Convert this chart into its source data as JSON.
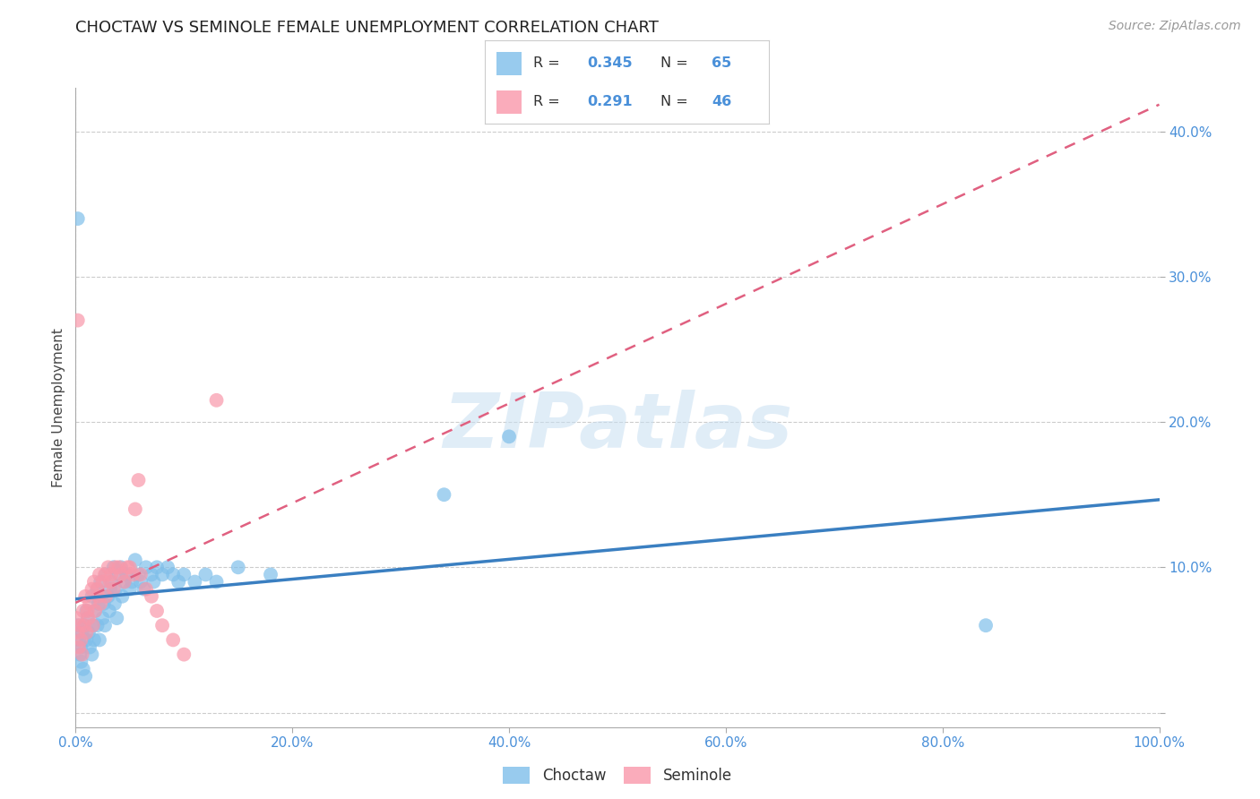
{
  "title": "CHOCTAW VS SEMINOLE FEMALE UNEMPLOYMENT CORRELATION CHART",
  "source": "Source: ZipAtlas.com",
  "ylabel": "Female Unemployment",
  "xlim": [
    0.0,
    1.0
  ],
  "ylim": [
    -0.01,
    0.43
  ],
  "xtick_vals": [
    0.0,
    0.2,
    0.4,
    0.6,
    0.8,
    1.0
  ],
  "xticklabels": [
    "0.0%",
    "20.0%",
    "40.0%",
    "60.0%",
    "80.0%",
    "100.0%"
  ],
  "ytick_vals": [
    0.0,
    0.1,
    0.2,
    0.3,
    0.4
  ],
  "yticklabels": [
    "",
    "10.0%",
    "20.0%",
    "30.0%",
    "40.0%"
  ],
  "background_color": "#ffffff",
  "grid_color": "#cccccc",
  "watermark_text": "ZIPatlas",
  "choctaw_color": "#7fbfea",
  "seminole_color": "#f998aa",
  "choctaw_line_color": "#3a7fc1",
  "seminole_line_color": "#e06080",
  "tick_color": "#4a90d9",
  "choctaw_R": 0.345,
  "choctaw_N": 65,
  "seminole_R": 0.291,
  "seminole_N": 46,
  "choctaw_x": [
    0.002,
    0.003,
    0.004,
    0.005,
    0.005,
    0.006,
    0.007,
    0.008,
    0.009,
    0.01,
    0.01,
    0.011,
    0.012,
    0.013,
    0.015,
    0.015,
    0.016,
    0.017,
    0.018,
    0.02,
    0.02,
    0.021,
    0.022,
    0.023,
    0.025,
    0.026,
    0.027,
    0.028,
    0.03,
    0.031,
    0.032,
    0.033,
    0.035,
    0.036,
    0.037,
    0.038,
    0.04,
    0.042,
    0.043,
    0.045,
    0.047,
    0.05,
    0.052,
    0.055,
    0.058,
    0.06,
    0.063,
    0.065,
    0.07,
    0.072,
    0.075,
    0.08,
    0.085,
    0.09,
    0.095,
    0.1,
    0.11,
    0.12,
    0.13,
    0.15,
    0.18,
    0.34,
    0.4,
    0.84,
    0.002
  ],
  "choctaw_y": [
    0.06,
    0.05,
    0.04,
    0.035,
    0.045,
    0.055,
    0.03,
    0.06,
    0.025,
    0.05,
    0.07,
    0.065,
    0.055,
    0.045,
    0.08,
    0.04,
    0.06,
    0.05,
    0.07,
    0.085,
    0.06,
    0.075,
    0.05,
    0.09,
    0.065,
    0.075,
    0.06,
    0.095,
    0.08,
    0.07,
    0.085,
    0.09,
    0.1,
    0.075,
    0.085,
    0.065,
    0.095,
    0.1,
    0.08,
    0.09,
    0.095,
    0.085,
    0.09,
    0.105,
    0.095,
    0.09,
    0.085,
    0.1,
    0.095,
    0.09,
    0.1,
    0.095,
    0.1,
    0.095,
    0.09,
    0.095,
    0.09,
    0.095,
    0.09,
    0.1,
    0.095,
    0.15,
    0.19,
    0.06,
    0.34
  ],
  "seminole_x": [
    0.001,
    0.002,
    0.003,
    0.004,
    0.005,
    0.006,
    0.007,
    0.008,
    0.009,
    0.01,
    0.011,
    0.012,
    0.013,
    0.015,
    0.016,
    0.017,
    0.018,
    0.02,
    0.021,
    0.022,
    0.023,
    0.025,
    0.027,
    0.028,
    0.03,
    0.032,
    0.033,
    0.035,
    0.037,
    0.04,
    0.042,
    0.045,
    0.048,
    0.05,
    0.053,
    0.055,
    0.058,
    0.06,
    0.065,
    0.07,
    0.075,
    0.08,
    0.09,
    0.1,
    0.13,
    0.002
  ],
  "seminole_y": [
    0.065,
    0.055,
    0.045,
    0.06,
    0.05,
    0.04,
    0.07,
    0.06,
    0.08,
    0.055,
    0.07,
    0.065,
    0.075,
    0.085,
    0.06,
    0.09,
    0.07,
    0.085,
    0.08,
    0.095,
    0.075,
    0.09,
    0.095,
    0.08,
    0.1,
    0.09,
    0.095,
    0.085,
    0.1,
    0.1,
    0.095,
    0.09,
    0.1,
    0.1,
    0.095,
    0.14,
    0.16,
    0.095,
    0.085,
    0.08,
    0.07,
    0.06,
    0.05,
    0.04,
    0.215,
    0.27
  ]
}
